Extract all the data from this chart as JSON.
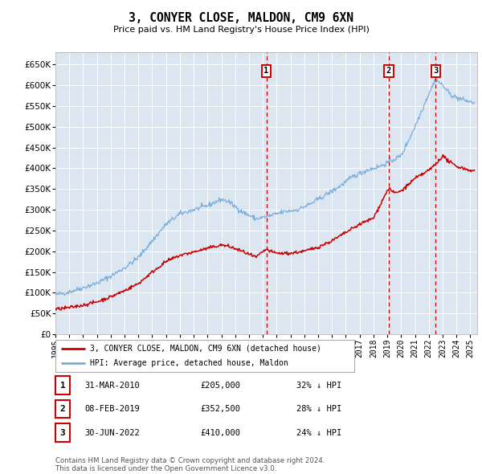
{
  "title": "3, CONYER CLOSE, MALDON, CM9 6XN",
  "subtitle": "Price paid vs. HM Land Registry's House Price Index (HPI)",
  "background_color": "#ffffff",
  "plot_bg_color": "#dce6f1",
  "grid_color": "#ffffff",
  "hpi_color": "#7aaddb",
  "price_color": "#cc0000",
  "vline_color": "#cc0000",
  "ylim_min": 0,
  "ylim_max": 680000,
  "yticks": [
    0,
    50000,
    100000,
    150000,
    200000,
    250000,
    300000,
    350000,
    400000,
    450000,
    500000,
    550000,
    600000,
    650000
  ],
  "transactions": [
    {
      "date_x": 2010.25,
      "price": 205000,
      "label": "1"
    },
    {
      "date_x": 2019.1,
      "price": 352500,
      "label": "2"
    },
    {
      "date_x": 2022.5,
      "price": 410000,
      "label": "3"
    }
  ],
  "table_rows": [
    {
      "num": "1",
      "date": "31-MAR-2010",
      "price": "£205,000",
      "pct": "32% ↓ HPI"
    },
    {
      "num": "2",
      "date": "08-FEB-2019",
      "price": "£352,500",
      "pct": "28% ↓ HPI"
    },
    {
      "num": "3",
      "date": "30-JUN-2022",
      "price": "£410,000",
      "pct": "24% ↓ HPI"
    }
  ],
  "legend_entries": [
    "3, CONYER CLOSE, MALDON, CM9 6XN (detached house)",
    "HPI: Average price, detached house, Maldon"
  ],
  "footnote": "Contains HM Land Registry data © Crown copyright and database right 2024.\nThis data is licensed under the Open Government Licence v3.0.",
  "xmin": 1995,
  "xmax": 2025.5
}
